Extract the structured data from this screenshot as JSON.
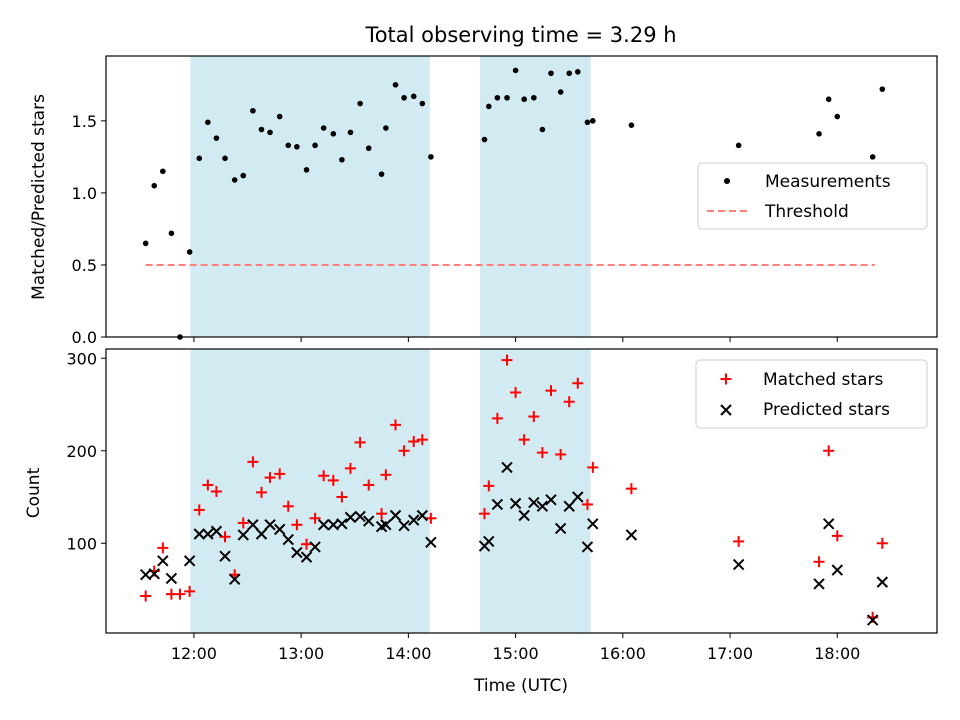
{
  "figure": {
    "title": "Total observing time = 3.29 h",
    "xlabel": "Time (UTC)"
  },
  "colors": {
    "shade": "#add8e6",
    "measurement": "#000000",
    "threshold": "#ff7f7f",
    "matched": "#ff0000",
    "predicted": "#000000"
  },
  "chart_data": [
    {
      "type": "scatter",
      "ylabel": "Matched/Predicted stars",
      "xlim": [
        11.18,
        18.93
      ],
      "ylim": [
        0,
        1.95
      ],
      "yticks": [
        0.0,
        0.5,
        1.0,
        1.5
      ],
      "ytick_labels": [
        "0.0",
        "0.5",
        "1.0",
        "1.5"
      ],
      "x_tick_labels_visible": false,
      "shaded_intervals": [
        [
          11.967,
          14.2
        ],
        [
          14.667,
          15.7
        ]
      ],
      "legend_position": "center right",
      "legend": [
        {
          "name": "Measurements",
          "marker": "dot"
        },
        {
          "name": "Threshold",
          "marker": "dashed-line"
        }
      ],
      "threshold": {
        "name": "Threshold",
        "value": 0.5,
        "x_range": [
          11.55,
          18.35
        ]
      },
      "series": [
        {
          "name": "Measurements",
          "marker": "dot",
          "points": [
            [
              11.55,
              0.65
            ],
            [
              11.63,
              1.05
            ],
            [
              11.71,
              1.15
            ],
            [
              11.79,
              0.72
            ],
            [
              11.87,
              0.0
            ],
            [
              11.96,
              0.59
            ],
            [
              12.05,
              1.24
            ],
            [
              12.13,
              1.49
            ],
            [
              12.21,
              1.38
            ],
            [
              12.29,
              1.24
            ],
            [
              12.38,
              1.09
            ],
            [
              12.46,
              1.12
            ],
            [
              12.55,
              1.57
            ],
            [
              12.63,
              1.44
            ],
            [
              12.71,
              1.42
            ],
            [
              12.8,
              1.53
            ],
            [
              12.88,
              1.33
            ],
            [
              12.96,
              1.32
            ],
            [
              13.05,
              1.16
            ],
            [
              13.13,
              1.33
            ],
            [
              13.21,
              1.45
            ],
            [
              13.3,
              1.41
            ],
            [
              13.38,
              1.23
            ],
            [
              13.46,
              1.42
            ],
            [
              13.55,
              1.62
            ],
            [
              13.63,
              1.31
            ],
            [
              13.75,
              1.13
            ],
            [
              13.79,
              1.45
            ],
            [
              13.88,
              1.75
            ],
            [
              13.96,
              1.66
            ],
            [
              14.05,
              1.67
            ],
            [
              14.13,
              1.62
            ],
            [
              14.21,
              1.25
            ],
            [
              14.71,
              1.37
            ],
            [
              14.75,
              1.6
            ],
            [
              14.83,
              1.66
            ],
            [
              14.92,
              1.66
            ],
            [
              15.0,
              1.85
            ],
            [
              15.08,
              1.65
            ],
            [
              15.17,
              1.66
            ],
            [
              15.25,
              1.44
            ],
            [
              15.33,
              1.83
            ],
            [
              15.42,
              1.7
            ],
            [
              15.5,
              1.83
            ],
            [
              15.58,
              1.84
            ],
            [
              15.67,
              1.49
            ],
            [
              15.72,
              1.5
            ],
            [
              16.08,
              1.47
            ],
            [
              17.08,
              1.33
            ],
            [
              17.83,
              1.41
            ],
            [
              17.92,
              1.65
            ],
            [
              18.0,
              1.53
            ],
            [
              18.33,
              1.25
            ],
            [
              18.42,
              1.72
            ]
          ]
        }
      ]
    },
    {
      "type": "scatter",
      "ylabel": "Count",
      "xlim": [
        11.18,
        18.93
      ],
      "ylim": [
        3,
        310
      ],
      "yticks": [
        100,
        200,
        300
      ],
      "ytick_labels": [
        "100",
        "200",
        "300"
      ],
      "xticks": [
        12,
        13,
        14,
        15,
        16,
        17,
        18
      ],
      "xtick_labels": [
        "12:00",
        "13:00",
        "14:00",
        "15:00",
        "16:00",
        "17:00",
        "18:00"
      ],
      "shaded_intervals": [
        [
          11.967,
          14.2
        ],
        [
          14.667,
          15.7
        ]
      ],
      "legend_position": "upper right",
      "series": [
        {
          "name": "Matched stars",
          "marker": "plus",
          "points": [
            [
              11.55,
              43
            ],
            [
              11.63,
              70
            ],
            [
              11.71,
              95
            ],
            [
              11.79,
              45
            ],
            [
              11.87,
              45
            ],
            [
              11.96,
              48
            ],
            [
              12.05,
              136
            ],
            [
              12.13,
              163
            ],
            [
              12.21,
              156
            ],
            [
              12.29,
              107
            ],
            [
              12.38,
              66
            ],
            [
              12.46,
              122
            ],
            [
              12.55,
              188
            ],
            [
              12.63,
              155
            ],
            [
              12.71,
              171
            ],
            [
              12.8,
              175
            ],
            [
              12.88,
              140
            ],
            [
              12.96,
              120
            ],
            [
              13.05,
              99
            ],
            [
              13.13,
              127
            ],
            [
              13.21,
              173
            ],
            [
              13.3,
              168
            ],
            [
              13.38,
              150
            ],
            [
              13.46,
              181
            ],
            [
              13.55,
              209
            ],
            [
              13.63,
              163
            ],
            [
              13.75,
              132
            ],
            [
              13.79,
              174
            ],
            [
              13.88,
              228
            ],
            [
              13.96,
              200
            ],
            [
              14.05,
              210
            ],
            [
              14.13,
              212
            ],
            [
              14.21,
              127
            ],
            [
              14.71,
              132
            ],
            [
              14.75,
              162
            ],
            [
              14.83,
              235
            ],
            [
              14.92,
              298
            ],
            [
              15.0,
              263
            ],
            [
              15.08,
              212
            ],
            [
              15.17,
              237
            ],
            [
              15.25,
              198
            ],
            [
              15.33,
              265
            ],
            [
              15.42,
              196
            ],
            [
              15.5,
              253
            ],
            [
              15.58,
              273
            ],
            [
              15.67,
              142
            ],
            [
              15.72,
              182
            ],
            [
              16.08,
              159
            ],
            [
              17.08,
              102
            ],
            [
              17.83,
              80
            ],
            [
              17.92,
              200
            ],
            [
              18.0,
              108
            ],
            [
              18.33,
              20
            ],
            [
              18.42,
              100
            ]
          ]
        },
        {
          "name": "Predicted stars",
          "marker": "x",
          "points": [
            [
              11.55,
              66
            ],
            [
              11.63,
              67
            ],
            [
              11.71,
              81
            ],
            [
              11.79,
              62
            ],
            [
              11.96,
              81
            ],
            [
              12.05,
              110
            ],
            [
              12.13,
              110
            ],
            [
              12.21,
              113
            ],
            [
              12.29,
              86
            ],
            [
              12.38,
              61
            ],
            [
              12.46,
              109
            ],
            [
              12.55,
              120
            ],
            [
              12.63,
              110
            ],
            [
              12.71,
              120
            ],
            [
              12.8,
              115
            ],
            [
              12.88,
              104
            ],
            [
              12.96,
              90
            ],
            [
              13.05,
              85
            ],
            [
              13.13,
              96
            ],
            [
              13.21,
              120
            ],
            [
              13.3,
              120
            ],
            [
              13.38,
              121
            ],
            [
              13.46,
              128
            ],
            [
              13.55,
              129
            ],
            [
              13.63,
              124
            ],
            [
              13.75,
              118
            ],
            [
              13.79,
              120
            ],
            [
              13.88,
              130
            ],
            [
              13.96,
              119
            ],
            [
              14.05,
              125
            ],
            [
              14.13,
              130
            ],
            [
              14.21,
              101
            ],
            [
              14.71,
              97
            ],
            [
              14.75,
              102
            ],
            [
              14.83,
              142
            ],
            [
              14.92,
              182
            ],
            [
              15.0,
              143
            ],
            [
              15.08,
              130
            ],
            [
              15.17,
              144
            ],
            [
              15.25,
              140
            ],
            [
              15.33,
              147
            ],
            [
              15.42,
              116
            ],
            [
              15.5,
              140
            ],
            [
              15.58,
              150
            ],
            [
              15.67,
              96
            ],
            [
              15.72,
              121
            ],
            [
              16.08,
              109
            ],
            [
              17.08,
              77
            ],
            [
              17.83,
              56
            ],
            [
              17.92,
              121
            ],
            [
              18.0,
              71
            ],
            [
              18.33,
              17
            ],
            [
              18.42,
              58
            ]
          ]
        }
      ]
    }
  ]
}
